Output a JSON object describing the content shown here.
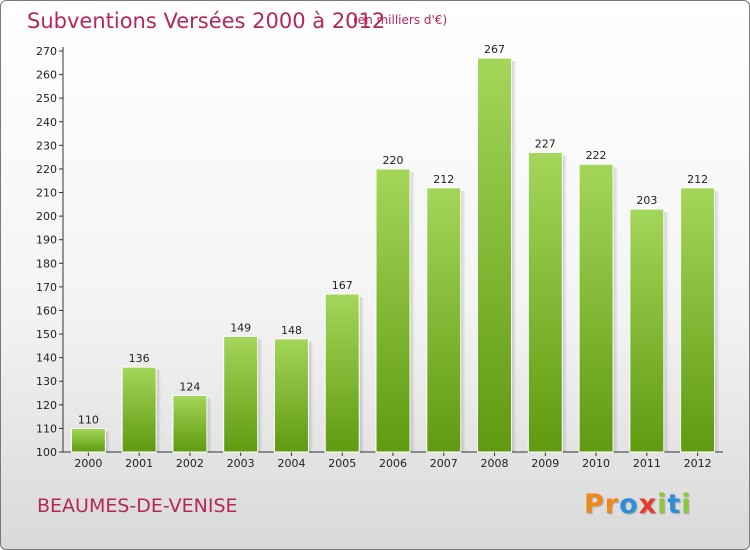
{
  "header": {
    "title": "Subventions Versées 2000 à 2012",
    "subtitle": "(en milliers d'€)"
  },
  "footer": {
    "commune": "BEAUMES-DE-VENISE",
    "logo_letters": [
      "P",
      "r",
      "o",
      "x",
      "i",
      "t",
      "i"
    ]
  },
  "colors": {
    "title": "#b5265a",
    "bar_light": "#a4d65a",
    "bar_dark": "#5f9a10",
    "logo": [
      "#f0881c",
      "#f0881c",
      "#2e8fd6",
      "#e63c2a",
      "#8dc63f",
      "#2e8fd6",
      "#8dc63f"
    ]
  },
  "chart_data": {
    "type": "bar",
    "title": "Subventions Versées 2000 à 2012",
    "subtitle": "(en milliers d'€)",
    "categories": [
      "2000",
      "2001",
      "2002",
      "2003",
      "2004",
      "2005",
      "2006",
      "2007",
      "2008",
      "2009",
      "2010",
      "2011",
      "2012"
    ],
    "values": [
      110,
      136,
      124,
      149,
      148,
      167,
      220,
      212,
      267,
      227,
      222,
      203,
      212
    ],
    "ylim": [
      100,
      270
    ],
    "ytick_step": 10,
    "grid": false,
    "legend": "none"
  }
}
